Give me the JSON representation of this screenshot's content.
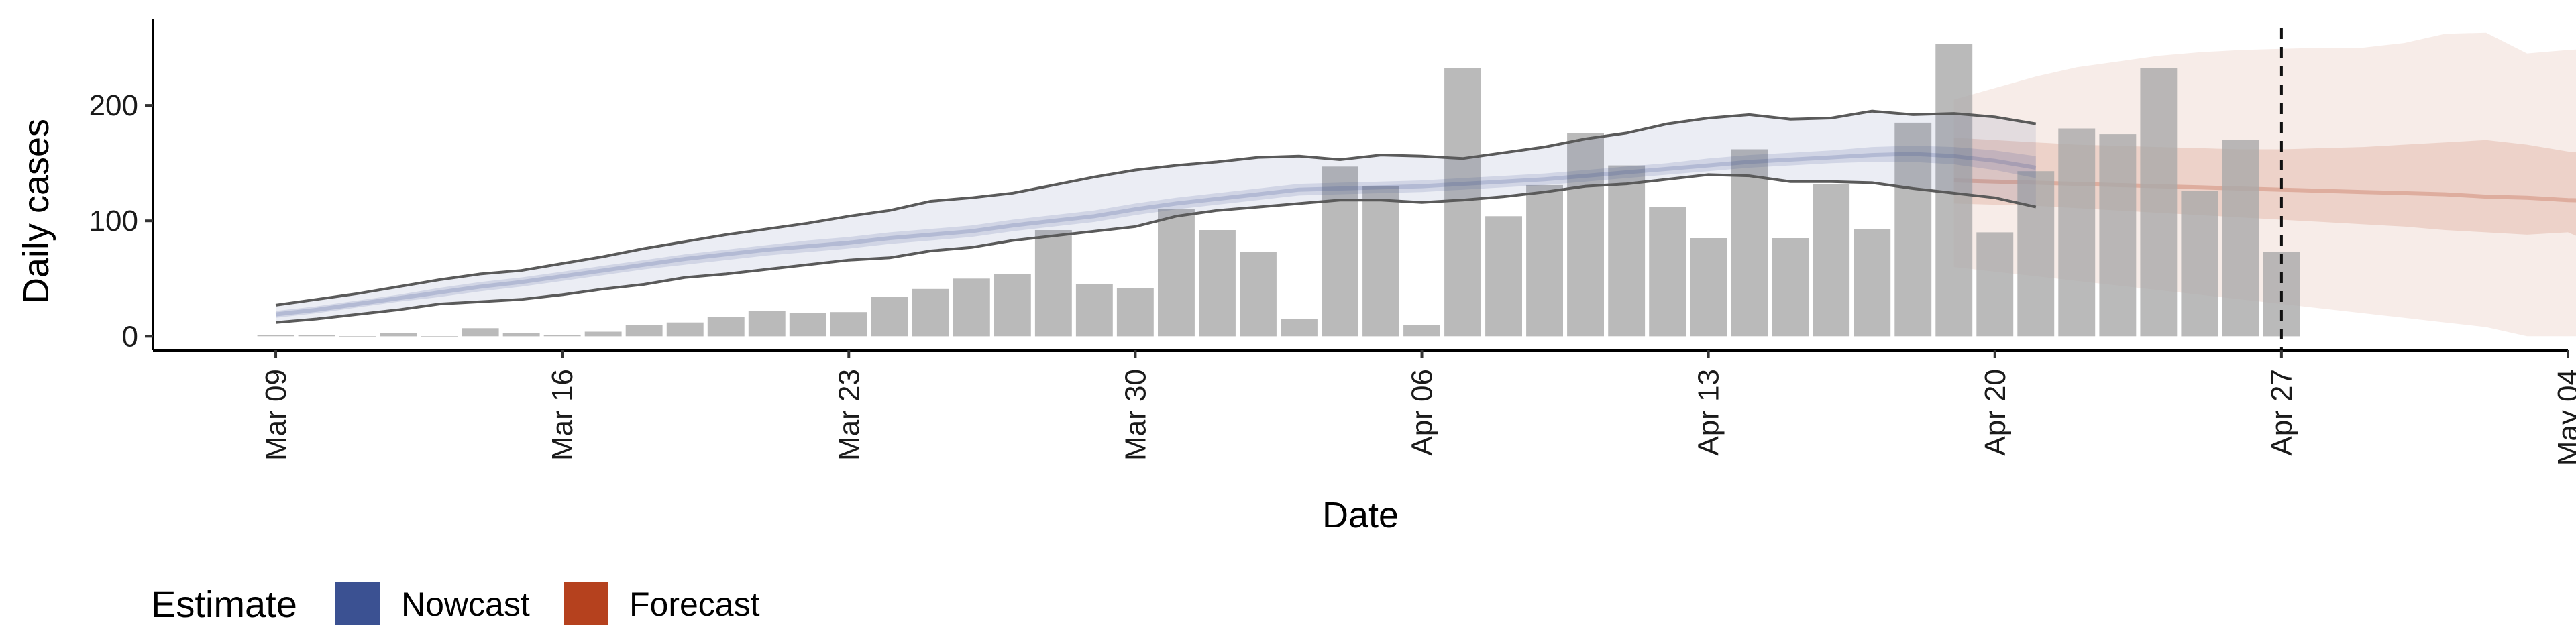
{
  "chart_data": {
    "type": "bar",
    "xlabel": "Date",
    "ylabel": "Daily cases",
    "x_ticks": [
      "Mar 09",
      "Mar 16",
      "Mar 23",
      "Mar 30",
      "Apr 06",
      "Apr 13",
      "Apr 20",
      "Apr 27",
      "May 04"
    ],
    "y_ticks": [
      0,
      100,
      200
    ],
    "ylim": [
      -12,
      275
    ],
    "xlim": [
      "2020-03-06",
      "2020-05-04"
    ],
    "grid": false,
    "reference_line": {
      "date": "2020-04-27",
      "style": "dashed"
    },
    "observed": {
      "start": "2020-03-09",
      "values": [
        1,
        1,
        0,
        3,
        0,
        7,
        3,
        1,
        4,
        10,
        12,
        17,
        22,
        20,
        21,
        34,
        41,
        50,
        54,
        92,
        45,
        42,
        110,
        92,
        73,
        15,
        147,
        130,
        10,
        232,
        104,
        131,
        176,
        148,
        112,
        85,
        162,
        85,
        132,
        93,
        185,
        253,
        90,
        143,
        180,
        175,
        232,
        126,
        170,
        73
      ]
    },
    "series": [
      {
        "name": "Nowcast",
        "color": "#3b5192",
        "start": "2020-03-09",
        "median": [
          19,
          23,
          28,
          33,
          38,
          43,
          47,
          52,
          57,
          62,
          67,
          71,
          75,
          78,
          81,
          85,
          88,
          91,
          96,
          100,
          104,
          110,
          115,
          119,
          123,
          127,
          128,
          129,
          130,
          132,
          134,
          136,
          139,
          142,
          145,
          148,
          151,
          153,
          155,
          157,
          158,
          156,
          152,
          146
        ],
        "lower_50": [
          16,
          20,
          25,
          30,
          34,
          39,
          43,
          48,
          53,
          58,
          62,
          66,
          70,
          73,
          76,
          80,
          83,
          86,
          91,
          95,
          99,
          105,
          110,
          114,
          118,
          122,
          123,
          124,
          125,
          127,
          129,
          131,
          134,
          137,
          140,
          143,
          146,
          148,
          150,
          151,
          151,
          149,
          144,
          137
        ],
        "upper_50": [
          22,
          26,
          31,
          36,
          42,
          47,
          51,
          56,
          61,
          66,
          71,
          75,
          79,
          83,
          86,
          90,
          93,
          96,
          101,
          105,
          109,
          115,
          120,
          124,
          128,
          132,
          133,
          134,
          135,
          137,
          139,
          141,
          144,
          147,
          150,
          154,
          157,
          159,
          161,
          164,
          165,
          164,
          161,
          156
        ],
        "lower_90": [
          12,
          15,
          19,
          23,
          28,
          30,
          32,
          36,
          41,
          45,
          51,
          54,
          58,
          62,
          66,
          68,
          74,
          77,
          83,
          87,
          91,
          95,
          104,
          109,
          112,
          115,
          118,
          118,
          116,
          118,
          121,
          125,
          130,
          132,
          136,
          140,
          139,
          134,
          134,
          133,
          128,
          124,
          120,
          112
        ],
        "upper_90": [
          27,
          32,
          37,
          43,
          49,
          54,
          57,
          63,
          69,
          76,
          82,
          88,
          93,
          98,
          104,
          109,
          117,
          120,
          124,
          131,
          138,
          144,
          148,
          151,
          155,
          156,
          153,
          157,
          156,
          154,
          159,
          164,
          171,
          176,
          184,
          189,
          192,
          188,
          189,
          195,
          192,
          193,
          190,
          184
        ]
      },
      {
        "name": "Forecast",
        "color": "#b5411e",
        "start": "2020-04-19",
        "median": [
          135,
          134,
          133,
          132,
          131,
          130,
          129,
          128,
          127,
          126,
          125,
          124,
          123,
          121,
          120,
          118,
          117,
          116,
          115
        ],
        "lower_50": [
          115,
          114,
          113,
          111,
          109,
          107,
          105,
          103,
          101,
          99,
          97,
          95,
          92,
          90,
          88,
          90,
          75,
          65,
          58
        ],
        "upper_50": [
          172,
          170,
          168,
          166,
          165,
          164,
          163,
          162,
          162,
          163,
          164,
          166,
          168,
          170,
          166,
          160,
          157,
          158,
          157
        ],
        "lower_90": [
          60,
          56,
          52,
          48,
          44,
          40,
          36,
          32,
          28,
          24,
          20,
          16,
          12,
          8,
          0,
          0,
          0,
          0,
          0
        ],
        "upper_90": [
          205,
          215,
          225,
          233,
          238,
          243,
          246,
          248,
          249,
          250,
          250,
          254,
          262,
          263,
          245,
          248,
          250,
          250,
          253
        ]
      }
    ],
    "legend": {
      "title": "Estimate",
      "position": "bottom-left",
      "items": [
        "Nowcast",
        "Forecast"
      ]
    }
  }
}
